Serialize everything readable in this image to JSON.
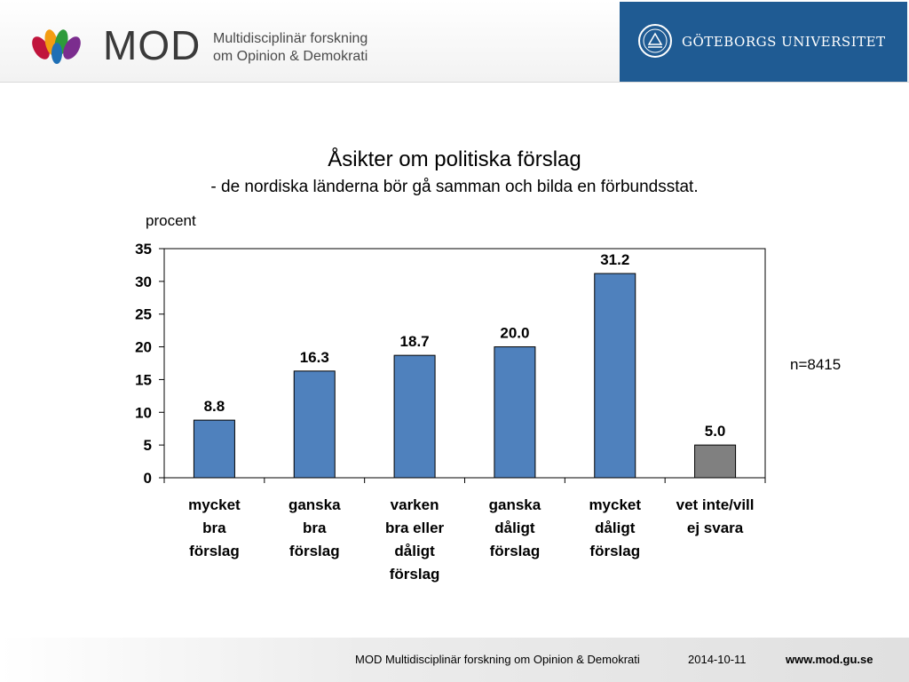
{
  "header": {
    "mod_word": "MOD",
    "mod_tagline_1": "Multidisciplinär forskning",
    "mod_tagline_2": "om Opinion & Demokrati",
    "university": "GÖTEBORGS UNIVERSITET"
  },
  "n_label": "n=8415",
  "footer": {
    "org": "MOD Multidisciplinär forskning om Opinion & Demokrati",
    "date": "2014-10-11",
    "url": "www.mod.gu.se"
  },
  "colors": {
    "bar_main": "#4f81bd",
    "bar_other": "#808080",
    "gu_blue": "#1f5b93"
  },
  "chart_data": {
    "type": "bar",
    "title": "Åsikter om politiska förslag",
    "subtitle": "- de nordiska länderna bör gå samman och bilda en förbundsstat.",
    "ylabel": "procent",
    "xlabel": "",
    "ylim": [
      0,
      35
    ],
    "yticks": [
      0,
      5,
      10,
      15,
      20,
      25,
      30,
      35
    ],
    "grid": false,
    "categories": [
      [
        "mycket",
        "bra",
        "förslag"
      ],
      [
        "ganska",
        "bra",
        "förslag"
      ],
      [
        "varken",
        "bra eller",
        "dåligt",
        "förslag"
      ],
      [
        "ganska",
        "dåligt",
        "förslag"
      ],
      [
        "mycket",
        "dåligt",
        "förslag"
      ],
      [
        "vet inte/vill",
        "ej svara"
      ]
    ],
    "values": [
      8.8,
      16.3,
      18.7,
      20.0,
      31.2,
      5.0
    ],
    "value_labels": [
      "8.8",
      "16.3",
      "18.7",
      "20.0",
      "31.2",
      "5.0"
    ],
    "bar_colors": [
      "#4f81bd",
      "#4f81bd",
      "#4f81bd",
      "#4f81bd",
      "#4f81bd",
      "#808080"
    ]
  }
}
